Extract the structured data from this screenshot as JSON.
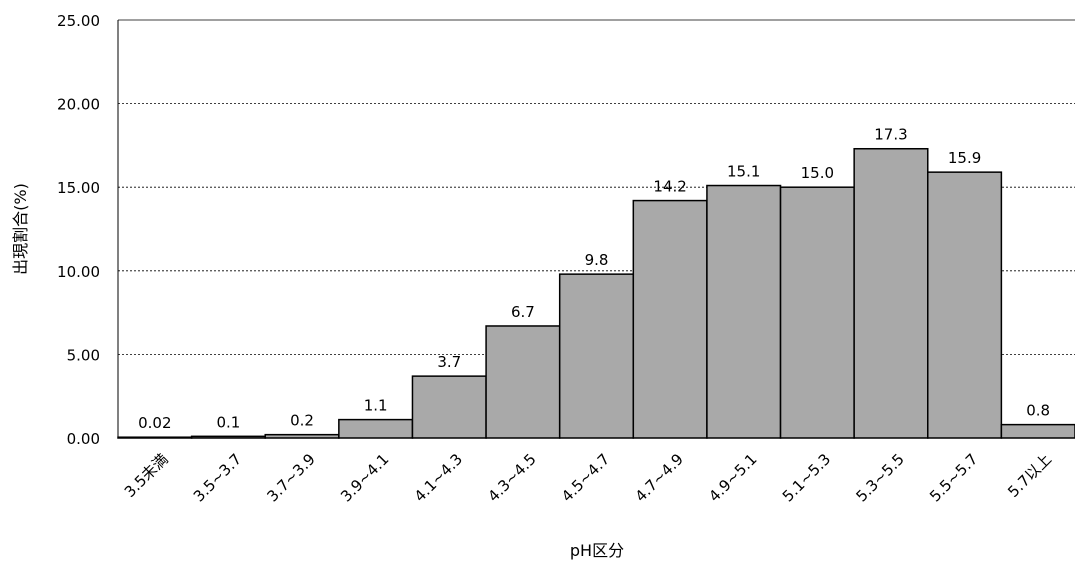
{
  "chart_data": {
    "type": "bar",
    "title": "",
    "xlabel": "pH区分",
    "ylabel": "出現割合(%)",
    "ylim": [
      0,
      25
    ],
    "yticks": [
      "0.00",
      "5.00",
      "10.00",
      "15.00",
      "20.00",
      "25.00"
    ],
    "grid": true,
    "categories": [
      "3.5未満",
      "3.5~3.7",
      "3.7~3.9",
      "3.9~4.1",
      "4.1~4.3",
      "4.3~4.5",
      "4.5~4.7",
      "4.7~4.9",
      "4.9~5.1",
      "5.1~5.3",
      "5.3~5.5",
      "5.5~5.7",
      "5.7以上"
    ],
    "values": [
      0.02,
      0.1,
      0.2,
      1.1,
      3.7,
      6.7,
      9.8,
      14.2,
      15.1,
      15.0,
      17.3,
      15.9,
      0.8
    ],
    "data_labels": [
      "0.02",
      "0.1",
      "0.2",
      "1.1",
      "3.7",
      "6.7",
      "9.8",
      "14.2",
      "15.1",
      "15.0",
      "17.3",
      "15.9",
      "0.8"
    ],
    "bar_color": "#a9a9a9",
    "bar_edge_color": "#000000"
  }
}
